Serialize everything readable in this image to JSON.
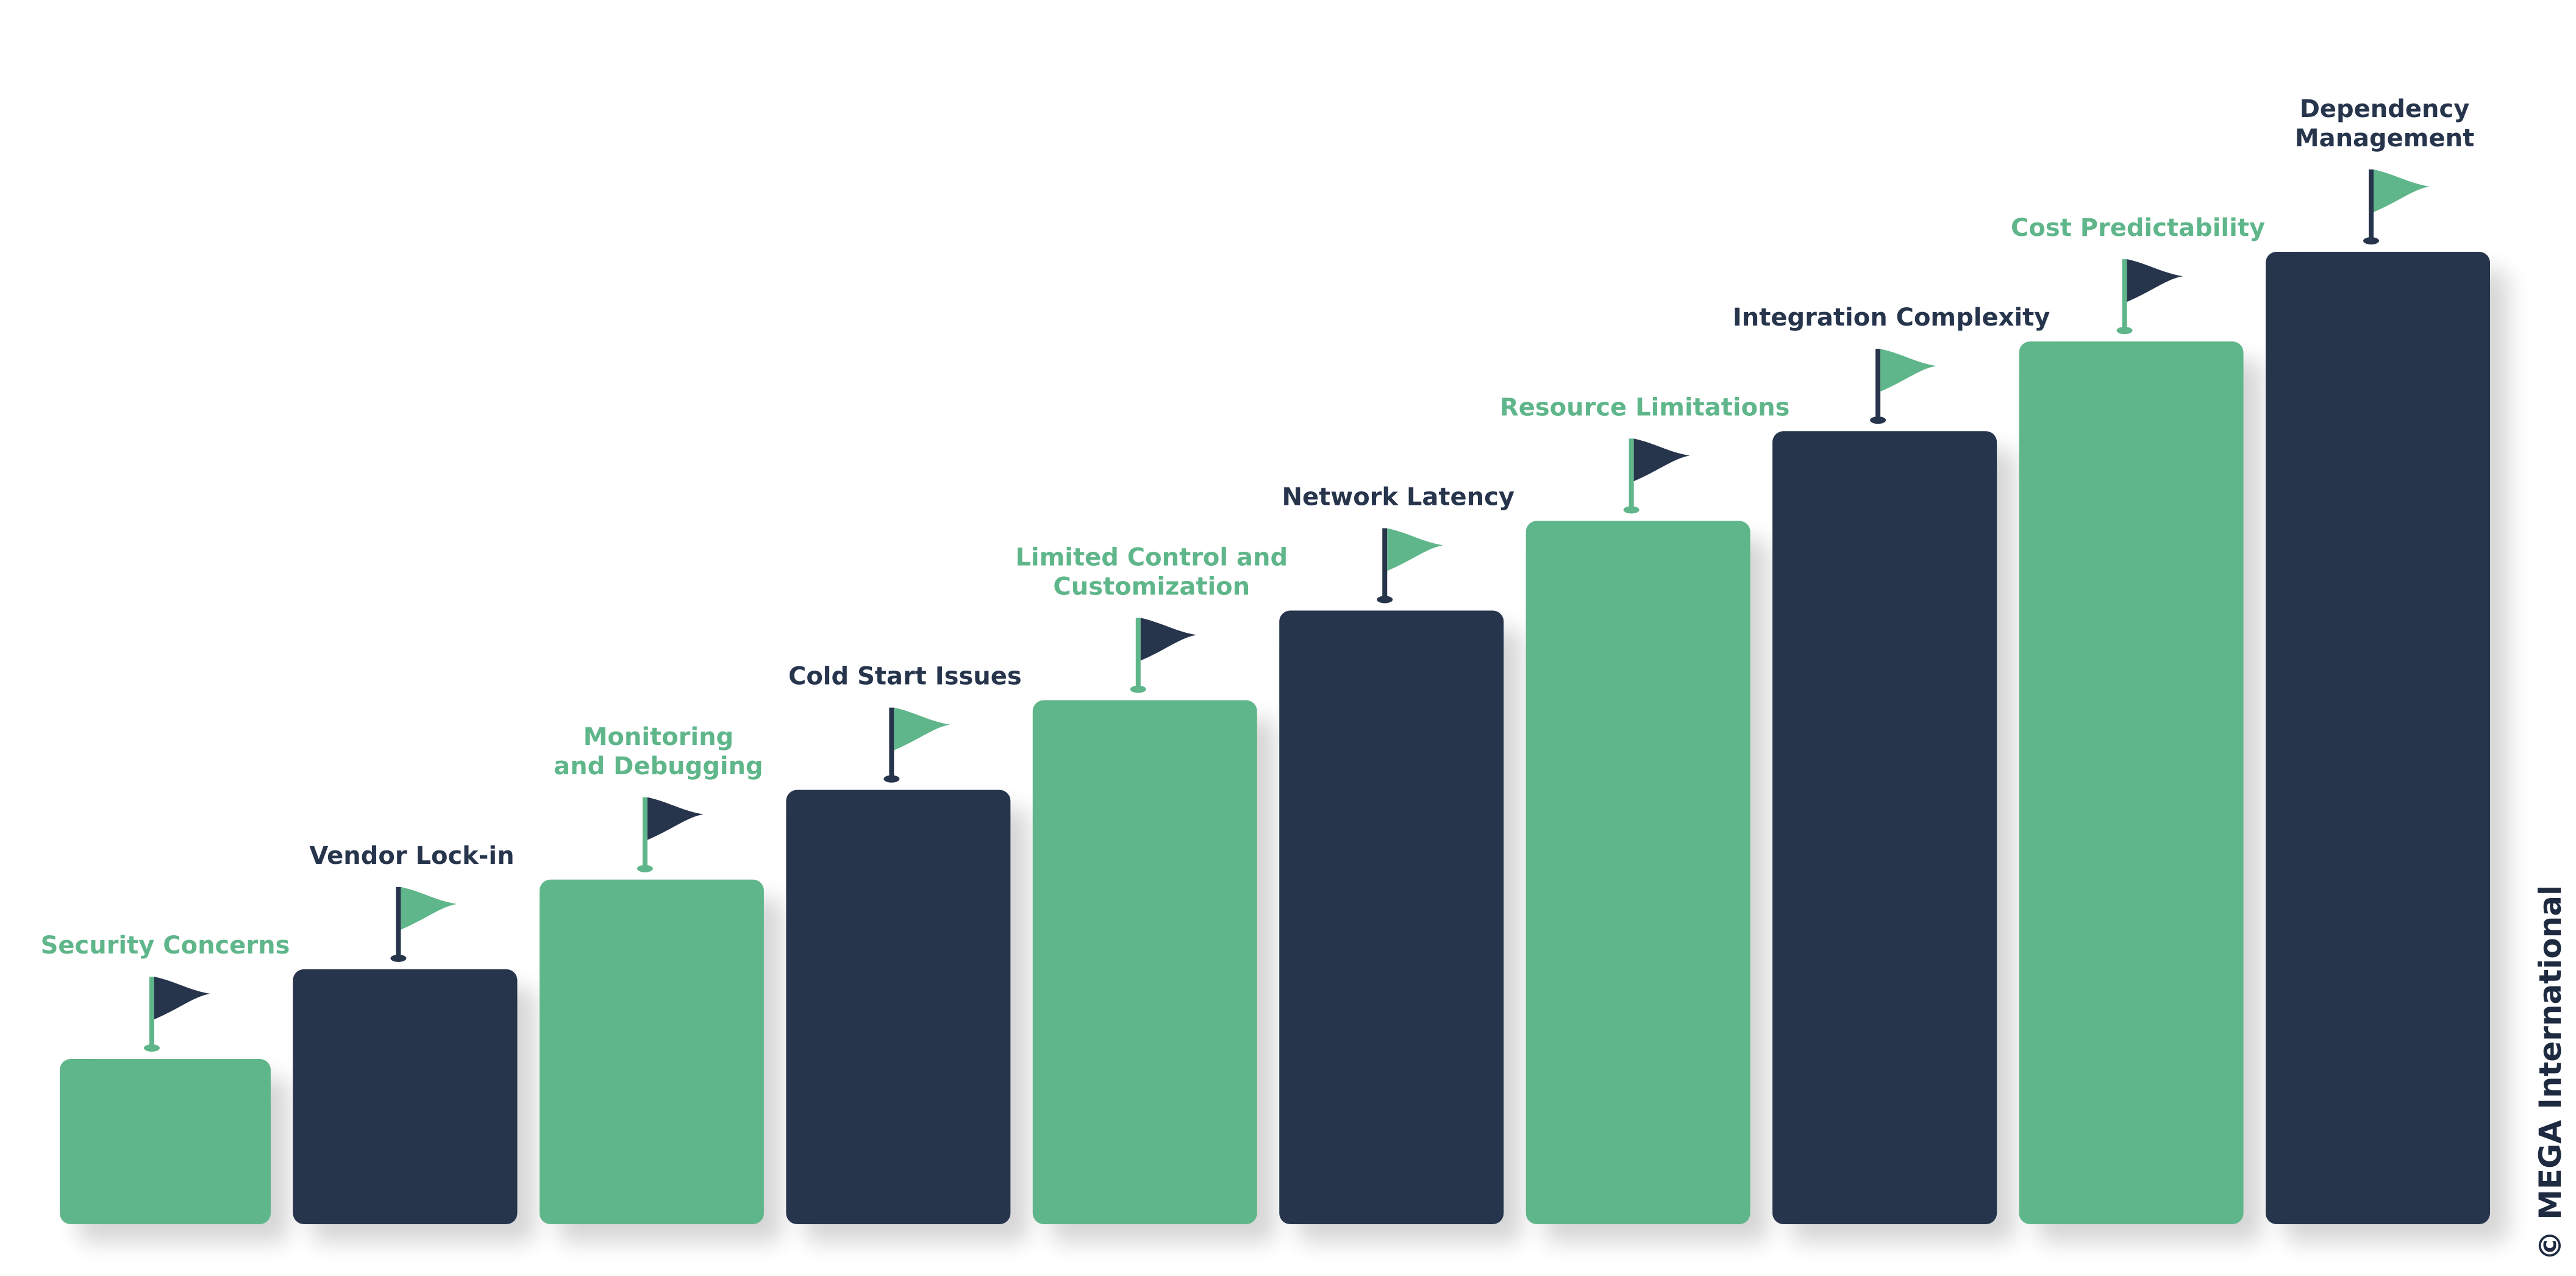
{
  "colors": {
    "green": "#5fb68a",
    "navy": "#26344c",
    "shadow": "#000000"
  },
  "steps": [
    {
      "label": [
        "Security Concerns"
      ],
      "color": "green",
      "flag_color": "navy",
      "level": 1
    },
    {
      "label": [
        "Vendor Lock-in"
      ],
      "color": "navy",
      "flag_color": "green",
      "level": 2
    },
    {
      "label": [
        "Monitoring",
        "and Debugging"
      ],
      "color": "green",
      "flag_color": "navy",
      "level": 3
    },
    {
      "label": [
        "Cold Start Issues"
      ],
      "color": "navy",
      "flag_color": "green",
      "level": 4
    },
    {
      "label": [
        "Limited Control and",
        "Customization"
      ],
      "color": "green",
      "flag_color": "navy",
      "level": 5
    },
    {
      "label": [
        "Network Latency"
      ],
      "color": "navy",
      "flag_color": "green",
      "level": 6
    },
    {
      "label": [
        "Resource Limitations"
      ],
      "color": "green",
      "flag_color": "navy",
      "level": 7
    },
    {
      "label": [
        "Integration Complexity"
      ],
      "color": "navy",
      "flag_color": "green",
      "level": 8
    },
    {
      "label": [
        "Cost Predictability"
      ],
      "color": "green",
      "flag_color": "navy",
      "level": 9
    },
    {
      "label": [
        "Dependency",
        "Management"
      ],
      "color": "navy",
      "flag_color": "green",
      "level": 10
    }
  ],
  "flag_icon": "flag-icon",
  "copyright": "© MEGA International"
}
